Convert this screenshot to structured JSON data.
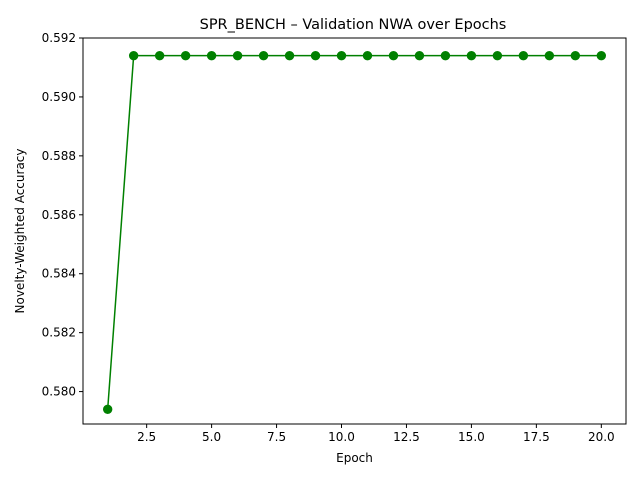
{
  "chart_data": {
    "type": "line",
    "title": "SPR_BENCH – Validation NWA over Epochs",
    "xlabel": "Epoch",
    "ylabel": "Novelty-Weighted Accuracy",
    "xlim": [
      0.05,
      20.95
    ],
    "ylim": [
      0.5789,
      0.592
    ],
    "x_ticks": [
      2.5,
      5.0,
      7.5,
      10.0,
      12.5,
      15.0,
      17.5,
      20.0
    ],
    "x_tick_labels": [
      "2.5",
      "5.0",
      "7.5",
      "10.0",
      "12.5",
      "15.0",
      "17.5",
      "20.0"
    ],
    "y_ticks": [
      0.58,
      0.582,
      0.584,
      0.586,
      0.588,
      0.59,
      0.592
    ],
    "y_tick_labels": [
      "0.580",
      "0.582",
      "0.584",
      "0.586",
      "0.588",
      "0.590",
      "0.592"
    ],
    "grid": false,
    "series": [
      {
        "color": "#008000",
        "marker": "circle",
        "x": [
          1,
          2,
          3,
          4,
          5,
          6,
          7,
          8,
          9,
          10,
          11,
          12,
          13,
          14,
          15,
          16,
          17,
          18,
          19,
          20
        ],
        "y": [
          0.5794,
          0.5914,
          0.5914,
          0.5914,
          0.5914,
          0.5914,
          0.5914,
          0.5914,
          0.5914,
          0.5914,
          0.5914,
          0.5914,
          0.5914,
          0.5914,
          0.5914,
          0.5914,
          0.5914,
          0.5914,
          0.5914,
          0.5914
        ]
      }
    ]
  }
}
